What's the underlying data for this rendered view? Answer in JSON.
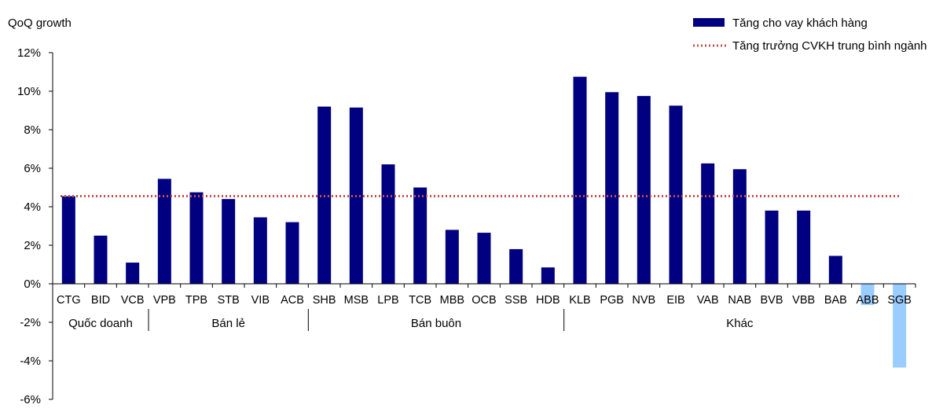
{
  "chart_data": {
    "type": "bar",
    "ylabel": "QoQ growth",
    "ylim": [
      -6,
      12
    ],
    "yticks": [
      -6,
      -4,
      -2,
      0,
      2,
      4,
      6,
      8,
      10,
      12
    ],
    "ytick_labels": [
      "-6%",
      "-4%",
      "-2%",
      "0%",
      "2%",
      "4%",
      "6%",
      "8%",
      "10%",
      "12%"
    ],
    "categories": [
      "CTG",
      "BID",
      "VCB",
      "VPB",
      "TPB",
      "STB",
      "VIB",
      "ACB",
      "SHB",
      "MSB",
      "LPB",
      "TCB",
      "MBB",
      "OCB",
      "SSB",
      "HDB",
      "KLB",
      "PGB",
      "NVB",
      "EIB",
      "VAB",
      "NAB",
      "BVB",
      "VBB",
      "BAB",
      "ABB",
      "SGB"
    ],
    "groups": [
      {
        "label": "Quốc doanh",
        "start": 0,
        "end": 2
      },
      {
        "label": "Bán lẻ",
        "start": 3,
        "end": 7
      },
      {
        "label": "Bán buôn",
        "start": 8,
        "end": 15
      },
      {
        "label": "Khác",
        "start": 16,
        "end": 26
      }
    ],
    "series": [
      {
        "name": "Tăng cho vay khách hàng",
        "values": [
          4.55,
          2.5,
          1.1,
          5.45,
          4.75,
          4.4,
          3.45,
          3.2,
          9.2,
          9.15,
          6.2,
          5.0,
          2.8,
          2.65,
          1.8,
          0.85,
          10.75,
          9.95,
          9.75,
          9.25,
          6.25,
          5.95,
          3.8,
          3.8,
          1.45,
          -1.1,
          -4.35
        ],
        "color": "#000080",
        "negative_color": "#99ccff"
      }
    ],
    "reference_line": {
      "name": "Tăng trưởng CVKH trung bình ngành",
      "value": 4.55,
      "color": "#c0504d",
      "style": "dotted"
    },
    "legend_position": "top-right",
    "grid": false
  }
}
